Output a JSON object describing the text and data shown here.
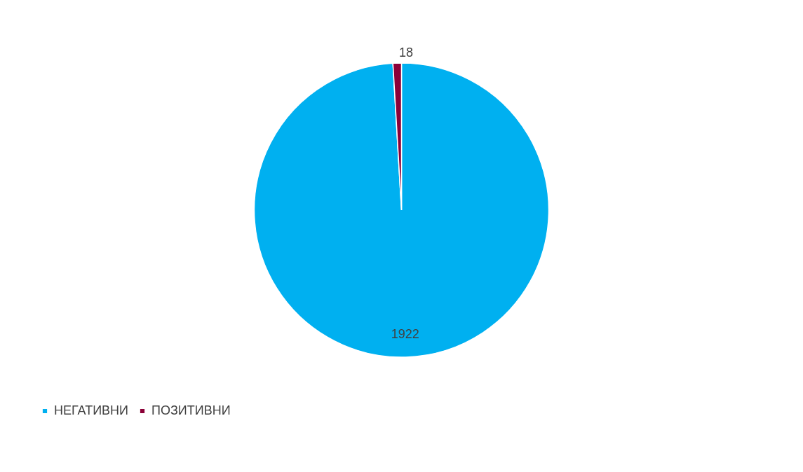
{
  "chart_data": {
    "type": "pie",
    "categories": [
      "НЕГАТИВНИ",
      "ПОЗИТИВНИ"
    ],
    "values": [
      1922,
      18
    ],
    "colors": [
      "#00b0f0",
      "#8b0037"
    ],
    "data_labels": true,
    "legend": "bottom"
  }
}
